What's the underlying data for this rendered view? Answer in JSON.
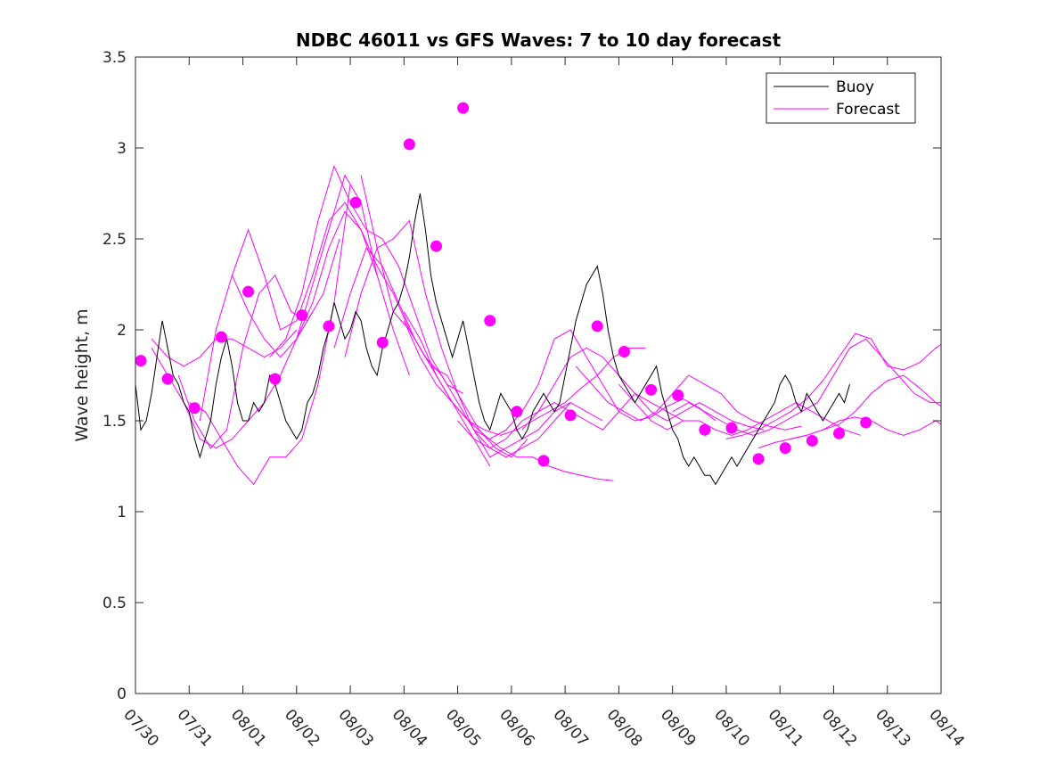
{
  "chart_data": {
    "type": "line",
    "title": "NDBC 46011 vs GFS Waves: 7 to 10 day forecast",
    "xlabel": "",
    "ylabel": "Wave height, m",
    "xlim": [
      0,
      15
    ],
    "ylim": [
      0,
      3.5
    ],
    "yticks": [
      "0",
      "0.5",
      "1",
      "1.5",
      "2",
      "2.5",
      "3",
      "3.5"
    ],
    "xtick_labels": [
      "07/30",
      "07/31",
      "08/01",
      "08/02",
      "08/03",
      "08/04",
      "08/05",
      "08/06",
      "08/07",
      "08/08",
      "08/09",
      "08/10",
      "08/11",
      "08/12",
      "08/13",
      "08/14"
    ],
    "grid": false,
    "legend_position": "top-right",
    "colors": {
      "buoy": "#000000",
      "forecast": "#ff00ff"
    },
    "buoy": {
      "name": "Buoy",
      "x": [
        0,
        0.1,
        0.2,
        0.3,
        0.4,
        0.5,
        0.6,
        0.7,
        0.8,
        0.9,
        1.0,
        1.1,
        1.2,
        1.3,
        1.4,
        1.5,
        1.6,
        1.7,
        1.8,
        1.9,
        2.0,
        2.1,
        2.2,
        2.3,
        2.4,
        2.5,
        2.6,
        2.7,
        2.8,
        2.9,
        3.0,
        3.1,
        3.2,
        3.3,
        3.4,
        3.5,
        3.6,
        3.7,
        3.8,
        3.9,
        4.0,
        4.1,
        4.2,
        4.3,
        4.4,
        4.5,
        4.6,
        4.7,
        4.8,
        4.9,
        5.0,
        5.1,
        5.2,
        5.3,
        5.4,
        5.5,
        5.6,
        5.7,
        5.8,
        5.9,
        6.0,
        6.1,
        6.2,
        6.3,
        6.4,
        6.5,
        6.6,
        6.7,
        6.8,
        6.9,
        7.0,
        7.1,
        7.2,
        7.3,
        7.4,
        7.5,
        7.6,
        7.7,
        7.8,
        7.9,
        8.0,
        8.1,
        8.2,
        8.3,
        8.4,
        8.5,
        8.6,
        8.7,
        8.8,
        8.9,
        9.0,
        9.1,
        9.2,
        9.3,
        9.4,
        9.5,
        9.6,
        9.7,
        9.8,
        9.9,
        10.0,
        10.1,
        10.2,
        10.3,
        10.4,
        10.5,
        10.6,
        10.7,
        10.8,
        10.9,
        11.0,
        11.1,
        11.2,
        11.3,
        11.4,
        11.5,
        11.6,
        11.7,
        11.8,
        11.9,
        12.0,
        12.1,
        12.2,
        12.3,
        12.4,
        12.5,
        12.6,
        12.7,
        12.8,
        12.9,
        13.0,
        13.1,
        13.2,
        13.3
      ],
      "values": [
        1.7,
        1.45,
        1.5,
        1.65,
        1.85,
        2.05,
        1.9,
        1.75,
        1.7,
        1.6,
        1.55,
        1.4,
        1.3,
        1.4,
        1.5,
        1.7,
        1.85,
        1.95,
        1.8,
        1.6,
        1.5,
        1.5,
        1.6,
        1.55,
        1.6,
        1.75,
        1.7,
        1.6,
        1.5,
        1.45,
        1.4,
        1.45,
        1.6,
        1.65,
        1.75,
        1.9,
        2.0,
        2.15,
        2.05,
        1.95,
        2.0,
        2.1,
        2.05,
        1.9,
        1.8,
        1.75,
        1.9,
        2.0,
        2.1,
        2.15,
        2.25,
        2.4,
        2.6,
        2.75,
        2.55,
        2.3,
        2.15,
        2.05,
        1.95,
        1.85,
        1.95,
        2.05,
        1.9,
        1.75,
        1.6,
        1.5,
        1.45,
        1.55,
        1.65,
        1.6,
        1.55,
        1.45,
        1.4,
        1.45,
        1.55,
        1.6,
        1.65,
        1.6,
        1.55,
        1.6,
        1.75,
        1.9,
        2.05,
        2.15,
        2.25,
        2.3,
        2.35,
        2.2,
        2.0,
        1.85,
        1.75,
        1.7,
        1.65,
        1.6,
        1.65,
        1.7,
        1.75,
        1.8,
        1.65,
        1.55,
        1.45,
        1.4,
        1.3,
        1.25,
        1.3,
        1.25,
        1.2,
        1.2,
        1.15,
        1.2,
        1.25,
        1.3,
        1.25,
        1.3,
        1.35,
        1.4,
        1.45,
        1.5,
        1.55,
        1.6,
        1.7,
        1.75,
        1.7,
        1.6,
        1.55,
        1.65,
        1.6,
        1.55,
        1.5,
        1.55,
        1.6,
        1.65,
        1.6,
        1.7
      ]
    },
    "forecast": {
      "name": "Forecast",
      "series": [
        {
          "x": [
            0.3,
            0.6,
            0.9,
            1.2,
            1.5,
            1.8,
            2.1,
            2.4,
            2.7,
            3.0
          ],
          "values": [
            1.95,
            1.85,
            1.8,
            1.85,
            1.95,
            1.95,
            1.9,
            1.85,
            1.9,
            2.0
          ]
        },
        {
          "x": [
            0.3,
            0.6,
            0.9,
            1.2,
            1.5,
            1.8,
            2.1,
            2.4,
            2.7,
            3.0,
            3.3
          ],
          "values": [
            1.9,
            1.75,
            1.6,
            1.4,
            1.35,
            1.4,
            1.5,
            1.6,
            1.75,
            1.95,
            2.1
          ]
        },
        {
          "x": [
            0.8,
            1.1,
            1.4,
            1.7,
            2.0,
            2.3,
            2.6,
            2.9,
            3.2,
            3.5,
            3.8
          ],
          "values": [
            1.75,
            1.5,
            1.35,
            1.45,
            1.9,
            2.2,
            2.3,
            2.1,
            2.05,
            2.2,
            2.5
          ]
        },
        {
          "x": [
            1.0,
            1.3,
            1.6,
            1.9,
            2.2,
            2.5,
            2.8,
            3.1,
            3.4,
            3.7,
            4.0
          ],
          "values": [
            1.6,
            1.55,
            1.4,
            1.25,
            1.15,
            1.3,
            1.3,
            1.4,
            1.7,
            2.15,
            2.8
          ]
        },
        {
          "x": [
            1.2,
            1.5,
            1.8,
            2.1,
            2.4,
            2.7,
            3.0,
            3.3,
            3.6,
            3.9,
            4.2,
            4.5
          ],
          "values": [
            1.5,
            2.0,
            2.3,
            2.1,
            1.95,
            1.85,
            1.95,
            2.25,
            2.55,
            2.85,
            2.7,
            2.3
          ]
        },
        {
          "x": [
            1.8,
            2.1,
            2.4,
            2.7,
            3.0,
            3.3,
            3.6,
            3.9,
            4.2,
            4.5,
            4.8,
            5.1
          ],
          "values": [
            2.3,
            2.55,
            2.3,
            2.0,
            2.05,
            2.3,
            2.6,
            2.7,
            2.55,
            2.3,
            2.0,
            1.75
          ]
        },
        {
          "x": [
            2.5,
            2.8,
            3.1,
            3.4,
            3.7,
            4.0,
            4.3,
            4.6,
            4.9,
            5.2,
            5.5,
            5.8,
            6.1
          ],
          "values": [
            1.85,
            1.95,
            2.2,
            2.6,
            2.9,
            2.7,
            2.55,
            2.5,
            2.35,
            2.1,
            1.85,
            1.7,
            1.65
          ]
        },
        {
          "x": [
            3.0,
            3.3,
            3.6,
            3.9,
            4.2,
            4.5,
            4.8,
            5.1,
            5.4,
            5.7,
            6.0,
            6.3,
            6.6
          ],
          "values": [
            1.95,
            2.15,
            2.45,
            2.65,
            2.55,
            2.35,
            2.2,
            2.0,
            1.85,
            1.7,
            1.55,
            1.4,
            1.25
          ]
        },
        {
          "x": [
            3.7,
            4.0,
            4.3,
            4.6,
            4.9,
            5.2,
            5.5,
            5.8,
            6.1,
            6.4,
            6.7,
            7.0,
            7.3
          ],
          "values": [
            1.9,
            2.2,
            2.45,
            2.35,
            2.15,
            1.95,
            1.8,
            1.75,
            1.6,
            1.45,
            1.35,
            1.3,
            1.4
          ]
        },
        {
          "x": [
            3.9,
            4.2,
            4.5,
            4.8,
            5.1,
            5.4,
            5.7,
            6.0,
            6.3,
            6.6,
            6.9,
            7.2,
            7.5,
            7.8,
            8.1
          ],
          "values": [
            1.85,
            2.2,
            2.45,
            2.1,
            2.0,
            1.85,
            1.75,
            1.6,
            1.45,
            1.35,
            1.3,
            1.35,
            1.4,
            1.5,
            1.6
          ]
        },
        {
          "x": [
            4.2,
            4.5,
            4.8,
            5.1,
            5.4,
            5.7,
            6.0,
            6.3,
            6.6,
            6.9,
            7.2,
            7.5,
            7.8,
            8.1,
            8.4,
            8.7
          ],
          "values": [
            2.85,
            2.45,
            2.5,
            2.6,
            2.2,
            1.9,
            1.65,
            1.45,
            1.3,
            1.35,
            1.4,
            1.45,
            1.55,
            1.6,
            1.55,
            1.5
          ]
        },
        {
          "x": [
            5.0,
            5.3,
            5.6,
            5.9,
            6.2,
            6.5,
            6.8,
            7.1,
            7.4,
            7.7,
            8.0,
            8.3,
            8.6,
            8.9
          ],
          "values": [
            2.05,
            1.85,
            1.7,
            1.6,
            1.5,
            1.42,
            1.35,
            1.3,
            1.3,
            1.25,
            1.22,
            1.2,
            1.18,
            1.17
          ]
        },
        {
          "x": [
            5.0,
            5.3,
            5.6,
            5.9,
            6.2,
            6.5,
            6.8,
            7.1,
            7.4,
            7.7,
            8.0,
            8.3,
            8.6,
            8.9,
            9.2,
            9.5
          ],
          "values": [
            2.1,
            1.95,
            1.75,
            1.6,
            1.5,
            1.45,
            1.42,
            1.45,
            1.5,
            1.55,
            1.6,
            1.68,
            1.75,
            1.85,
            1.9,
            1.9
          ]
        },
        {
          "x": [
            6.0,
            6.3,
            6.6,
            6.9,
            7.2,
            7.5,
            7.8,
            8.1,
            8.4,
            8.7,
            9.0,
            9.3,
            9.6,
            9.9,
            10.2
          ],
          "values": [
            1.5,
            1.4,
            1.35,
            1.4,
            1.5,
            1.55,
            1.6,
            1.55,
            1.5,
            1.45,
            1.55,
            1.65,
            1.6,
            1.55,
            1.5
          ]
        },
        {
          "x": [
            6.3,
            6.6,
            6.9,
            7.2,
            7.5,
            7.8,
            8.1,
            8.4,
            8.7,
            9.0,
            9.3,
            9.6,
            9.9,
            10.2,
            10.5,
            10.8
          ],
          "values": [
            1.45,
            1.4,
            1.45,
            1.55,
            1.7,
            1.95,
            2.0,
            1.85,
            1.7,
            1.55,
            1.5,
            1.52,
            1.58,
            1.62,
            1.57,
            1.5
          ]
        },
        {
          "x": [
            7.2,
            7.5,
            7.8,
            8.1,
            8.4,
            8.7,
            9.0,
            9.3,
            9.6,
            9.9,
            10.2,
            10.5,
            10.8,
            11.1,
            11.4,
            11.7
          ],
          "values": [
            1.45,
            1.55,
            1.7,
            1.85,
            1.9,
            1.85,
            1.75,
            1.65,
            1.55,
            1.5,
            1.55,
            1.6,
            1.55,
            1.5,
            1.47,
            1.45
          ]
        },
        {
          "x": [
            8.2,
            8.5,
            8.8,
            9.1,
            9.4,
            9.7,
            10.0,
            10.3,
            10.6,
            10.9,
            11.2,
            11.5,
            11.8,
            12.1,
            12.4
          ],
          "values": [
            1.8,
            1.7,
            1.6,
            1.55,
            1.5,
            1.55,
            1.65,
            1.75,
            1.7,
            1.65,
            1.55,
            1.5,
            1.47,
            1.45,
            1.47
          ]
        },
        {
          "x": [
            9.0,
            9.3,
            9.6,
            9.9,
            10.2,
            10.5,
            10.8,
            11.1,
            11.4,
            11.7,
            12.0,
            12.3,
            12.6,
            12.9,
            13.2,
            13.5
          ],
          "values": [
            1.7,
            1.6,
            1.5,
            1.45,
            1.5,
            1.5,
            1.45,
            1.42,
            1.45,
            1.5,
            1.55,
            1.6,
            1.55,
            1.5,
            1.45,
            1.42
          ]
        },
        {
          "x": [
            10.0,
            10.3,
            10.6,
            10.9,
            11.2,
            11.5,
            11.8,
            12.1,
            12.4,
            12.7,
            13.0,
            13.3,
            13.6,
            13.9,
            14.2,
            14.5,
            14.8,
            15.0
          ],
          "values": [
            1.55,
            1.6,
            1.55,
            1.5,
            1.45,
            1.42,
            1.45,
            1.5,
            1.55,
            1.6,
            1.75,
            1.9,
            1.95,
            1.85,
            1.75,
            1.65,
            1.6,
            1.6
          ]
        },
        {
          "x": [
            11.0,
            11.3,
            11.6,
            11.9,
            12.2,
            12.5,
            12.8,
            13.1,
            13.4,
            13.7,
            14.0,
            14.3,
            14.6,
            14.9,
            15.0
          ],
          "values": [
            1.4,
            1.42,
            1.45,
            1.5,
            1.55,
            1.62,
            1.72,
            1.85,
            1.98,
            1.95,
            1.8,
            1.78,
            1.82,
            1.9,
            1.92
          ]
        },
        {
          "x": [
            11.6,
            11.9,
            12.2,
            12.5,
            12.8,
            13.1,
            13.4,
            13.7,
            14.0,
            14.3,
            14.6,
            14.9,
            15.0
          ],
          "values": [
            1.35,
            1.38,
            1.4,
            1.42,
            1.45,
            1.48,
            1.55,
            1.65,
            1.72,
            1.75,
            1.68,
            1.6,
            1.58
          ]
        },
        {
          "x": [
            12.2,
            12.5,
            12.8,
            13.1,
            13.4,
            13.7,
            14.0,
            14.3,
            14.6,
            14.9,
            15.0
          ],
          "values": [
            1.4,
            1.42,
            1.45,
            1.5,
            1.52,
            1.5,
            1.45,
            1.42,
            1.45,
            1.5,
            1.48
          ]
        }
      ],
      "markers": {
        "x": [
          0.1,
          0.6,
          1.1,
          1.6,
          2.1,
          2.6,
          3.1,
          3.6,
          4.1,
          4.6,
          5.1,
          5.6,
          6.1,
          6.6,
          7.1,
          7.6,
          8.1,
          8.6,
          9.1,
          9.6,
          10.1,
          10.6,
          11.1,
          11.6,
          12.1,
          12.6,
          13.1,
          13.6
        ],
        "values": [
          1.83,
          1.73,
          1.57,
          1.96,
          2.21,
          1.73,
          2.08,
          2.02,
          2.7,
          1.93,
          3.02,
          2.46,
          3.22,
          2.05,
          1.55,
          1.28,
          1.53,
          2.02,
          1.88,
          1.67,
          1.64,
          1.45,
          1.46,
          1.29,
          1.35,
          1.39,
          1.43,
          1.49
        ]
      }
    },
    "legend": [
      {
        "label": "Buoy",
        "color": "#000000"
      },
      {
        "label": "Forecast",
        "color": "#ff00ff"
      }
    ]
  }
}
